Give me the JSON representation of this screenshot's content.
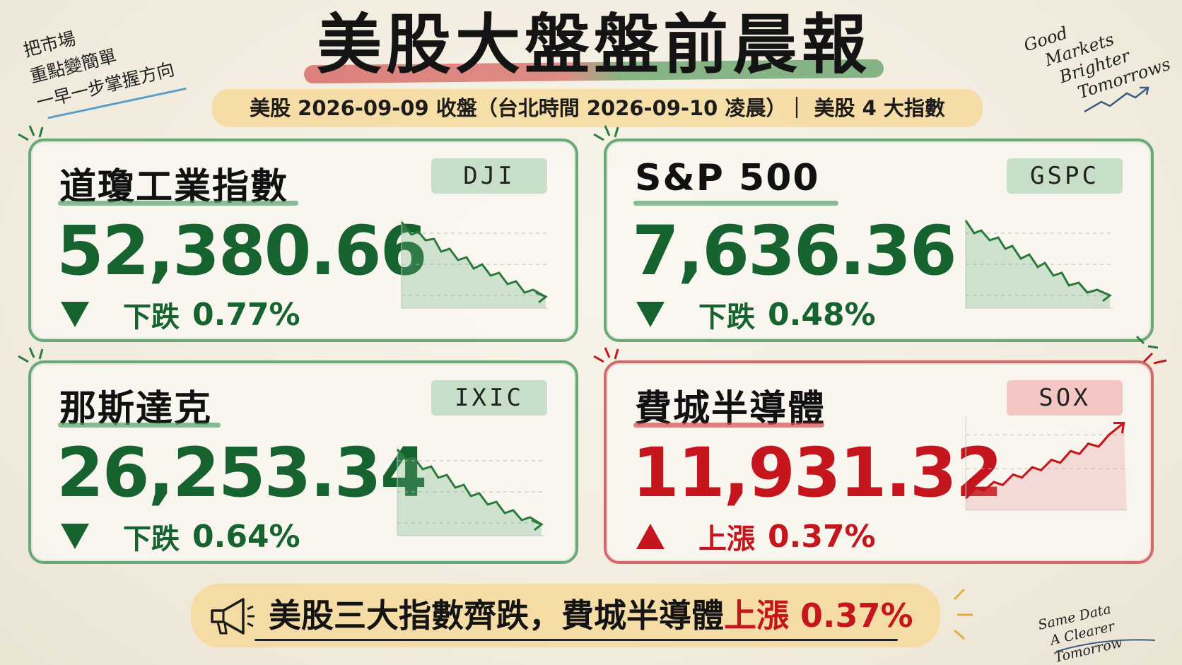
{
  "title": "美股大盤盤前晨報",
  "subtitle": "美股 2026-09-09 收盤（台北時間 2026-09-10 凌晨）｜ 美股 4 大指數",
  "corner_top_left": [
    "把市場",
    "重點變簡單",
    "一早一步掌握方向"
  ],
  "corner_top_right": [
    "Good",
    "Markets",
    "Brighter",
    "Tomorrows"
  ],
  "corner_bottom_right": [
    "Same Data",
    "A Clearer Tomorrow"
  ],
  "colors": {
    "down": "#16632f",
    "up": "#c4161c",
    "banner": "#f6d58f"
  },
  "indices": [
    {
      "name": "道瓊工業指數",
      "ticker": "DJI",
      "value": "52,380.66",
      "direction": "下跌",
      "change": "0.77%",
      "trend": "down"
    },
    {
      "name": "S&P 500",
      "ticker": "GSPC",
      "value": "7,636.36",
      "direction": "下跌",
      "change": "0.48%",
      "trend": "down"
    },
    {
      "name": "那斯達克",
      "ticker": "IXIC",
      "value": "26,253.34",
      "direction": "下跌",
      "change": "0.64%",
      "trend": "down"
    },
    {
      "name": "費城半導體",
      "ticker": "SOX",
      "value": "11,931.32",
      "direction": "上漲",
      "change": "0.37%",
      "trend": "up"
    }
  ],
  "footer": {
    "text": "美股三大指數齊跌，費城半導體",
    "highlight": "上漲 0.37%",
    "icon": "megaphone-icon"
  }
}
